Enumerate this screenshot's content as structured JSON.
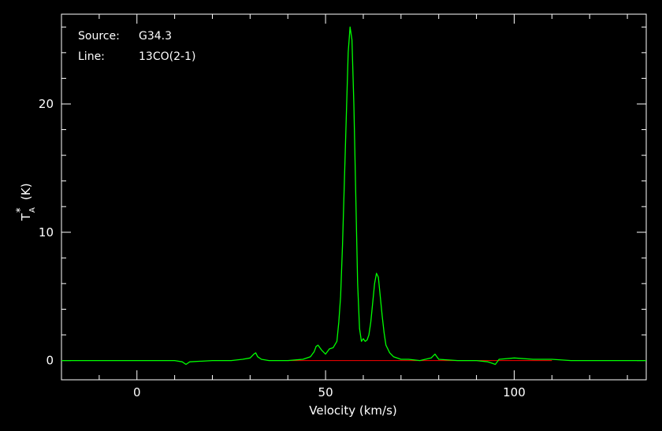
{
  "chart_data": {
    "type": "line",
    "title": "",
    "annotations": {
      "source_label": "Source:",
      "source_value": "G34.3",
      "line_label": "Line:",
      "line_value": "13CO(2-1)"
    },
    "xlabel": "Velocity (km/s)",
    "ylabel_main": "T",
    "ylabel_sub": "A",
    "ylabel_sup": "*",
    "ylabel_unit": "(K)",
    "xlim": [
      -20,
      135
    ],
    "ylim": [
      -1.5,
      27
    ],
    "xticks_major": [
      0,
      50,
      100
    ],
    "xtick_labels": [
      "0",
      "50",
      "100"
    ],
    "yticks_major": [
      0,
      10,
      20
    ],
    "ytick_labels": [
      "0",
      "10",
      "20"
    ],
    "grid": false,
    "colors": {
      "background": "#000000",
      "axes": "#ffffff",
      "spectrum": "#00ff00",
      "baseline": "#ff0000"
    },
    "baseline": {
      "y": 0,
      "x_range": [
        40,
        110
      ]
    },
    "series": [
      {
        "x": [
          -20,
          -15,
          -10,
          -5,
          0,
          5,
          10,
          12,
          13,
          14,
          20,
          25,
          28,
          30,
          31,
          31.5,
          32,
          33,
          35,
          40,
          44,
          46,
          47,
          47.5,
          48,
          49,
          50,
          51,
          52,
          53,
          53.5,
          54,
          54.5,
          55,
          55.5,
          56,
          56.5,
          57,
          57.5,
          58,
          58.5,
          59,
          59.5,
          60,
          60.5,
          61,
          61.5,
          62,
          62.5,
          63,
          63.5,
          64,
          64.5,
          65,
          65.5,
          66,
          67,
          68,
          70,
          72,
          75,
          78,
          79,
          80,
          85,
          90,
          93,
          94,
          95,
          96,
          100,
          105,
          110,
          115,
          120,
          125,
          130,
          135
        ],
        "y": [
          0,
          0,
          0,
          0,
          0,
          0,
          0,
          -0.1,
          -0.3,
          -0.1,
          0,
          0,
          0.1,
          0.2,
          0.5,
          0.6,
          0.3,
          0.1,
          0,
          0,
          0.1,
          0.3,
          0.7,
          1.1,
          1.2,
          0.8,
          0.5,
          0.9,
          1.0,
          1.5,
          3,
          5,
          9,
          14,
          19,
          24,
          26.0,
          25,
          20,
          13,
          6,
          2.5,
          1.5,
          1.7,
          1.5,
          1.6,
          2.0,
          3.0,
          4.5,
          6.0,
          6.8,
          6.5,
          5.0,
          3.5,
          2.2,
          1.2,
          0.6,
          0.3,
          0.1,
          0.1,
          0,
          0.2,
          0.5,
          0.1,
          0,
          0,
          -0.1,
          -0.2,
          -0.3,
          0.1,
          0.2,
          0.1,
          0.1,
          0,
          0,
          0,
          0,
          0
        ]
      }
    ]
  }
}
